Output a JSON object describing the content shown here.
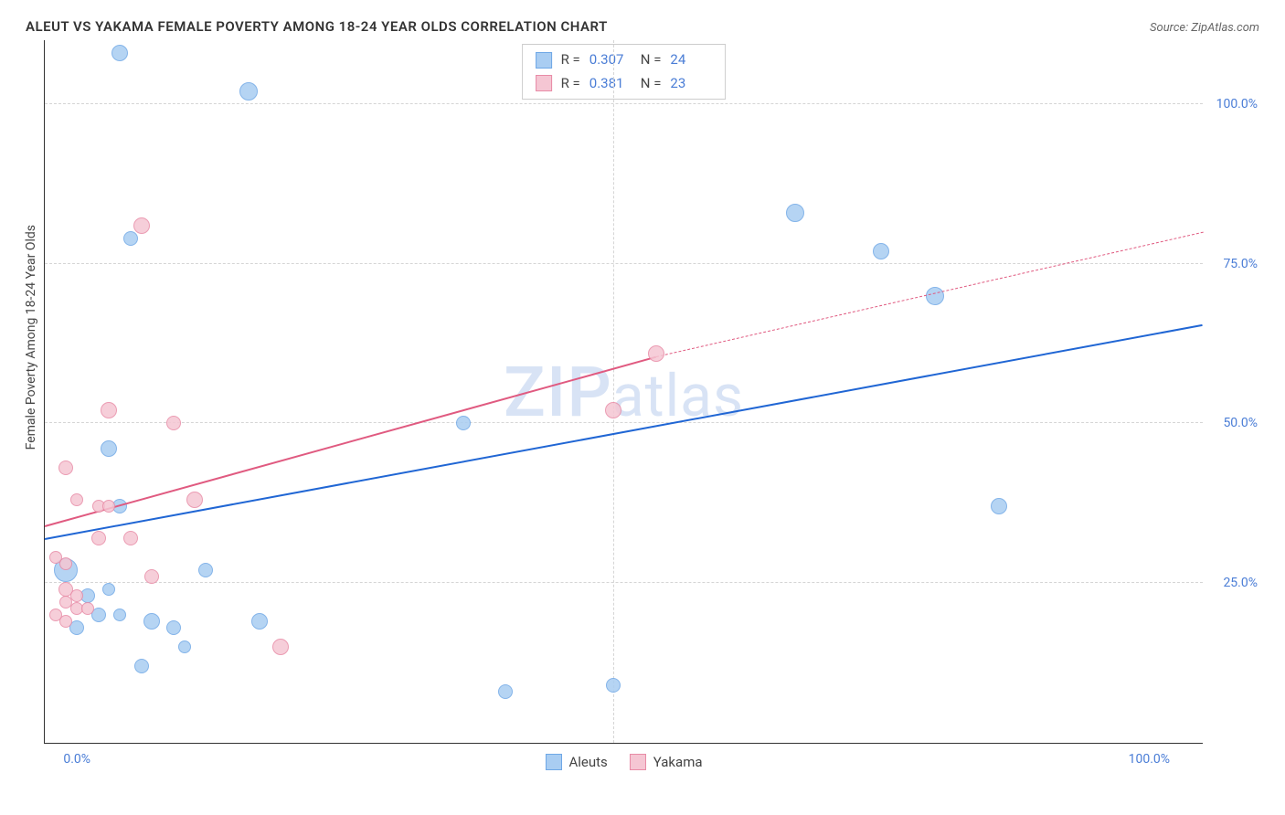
{
  "title": "ALEUT VS YAKAMA FEMALE POVERTY AMONG 18-24 YEAR OLDS CORRELATION CHART",
  "source": "Source: ZipAtlas.com",
  "ylabel": "Female Poverty Among 18-24 Year Olds",
  "watermark_a": "ZIP",
  "watermark_b": "atlas",
  "chart": {
    "type": "scatter",
    "background_color": "#ffffff",
    "grid_color": "#d5d5d5",
    "axis_color": "#333333",
    "tick_color": "#4a7dd6",
    "tick_fontsize": 14,
    "xlim": [
      -3,
      105
    ],
    "ylim": [
      0,
      110
    ],
    "xticks": [
      {
        "v": 0,
        "label": "0.0%"
      },
      {
        "v": 100,
        "label": "100.0%"
      }
    ],
    "yticks": [
      {
        "v": 25,
        "label": "25.0%"
      },
      {
        "v": 50,
        "label": "50.0%"
      },
      {
        "v": 75,
        "label": "75.0%"
      },
      {
        "v": 100,
        "label": "100.0%"
      }
    ],
    "x_gridlines": [
      50
    ],
    "series": [
      {
        "name": "Aleuts",
        "fill": "#a9cdf2",
        "stroke": "#6fa8e6",
        "trend_color": "#2066d4",
        "marker_r_default": 9,
        "r_value": "0.307",
        "n_value": "24",
        "trend": {
          "x1": -3,
          "y1": 32,
          "x2": 105,
          "y2": 65.5
        },
        "points": [
          {
            "x": 4,
            "y": 108,
            "r": 9
          },
          {
            "x": 16,
            "y": 102,
            "r": 10
          },
          {
            "x": 67,
            "y": 83,
            "r": 10
          },
          {
            "x": 5,
            "y": 79,
            "r": 8
          },
          {
            "x": 75,
            "y": 77,
            "r": 9
          },
          {
            "x": 80,
            "y": 70,
            "r": 10
          },
          {
            "x": 36,
            "y": 50,
            "r": 8
          },
          {
            "x": 3,
            "y": 46,
            "r": 9
          },
          {
            "x": 86,
            "y": 37,
            "r": 9
          },
          {
            "x": 4,
            "y": 37,
            "r": 8
          },
          {
            "x": -1,
            "y": 27,
            "r": 13
          },
          {
            "x": 12,
            "y": 27,
            "r": 8
          },
          {
            "x": 1,
            "y": 23,
            "r": 8
          },
          {
            "x": 3,
            "y": 24,
            "r": 7
          },
          {
            "x": 2,
            "y": 20,
            "r": 8
          },
          {
            "x": 4,
            "y": 20,
            "r": 7
          },
          {
            "x": 7,
            "y": 19,
            "r": 9
          },
          {
            "x": 0,
            "y": 18,
            "r": 8
          },
          {
            "x": 9,
            "y": 18,
            "r": 8
          },
          {
            "x": 17,
            "y": 19,
            "r": 9
          },
          {
            "x": 6,
            "y": 12,
            "r": 8
          },
          {
            "x": 40,
            "y": 8,
            "r": 8
          },
          {
            "x": 50,
            "y": 9,
            "r": 8
          },
          {
            "x": 10,
            "y": 15,
            "r": 7
          }
        ]
      },
      {
        "name": "Yakama",
        "fill": "#f5c6d3",
        "stroke": "#e88ba6",
        "trend_color": "#e05a80",
        "marker_r_default": 9,
        "r_value": "0.381",
        "n_value": "23",
        "trend": {
          "x1": -3,
          "y1": 34,
          "x2": 54,
          "y2": 60.5
        },
        "trend_dash": {
          "x1": 54,
          "y1": 60.5,
          "x2": 105,
          "y2": 80
        },
        "points": [
          {
            "x": 6,
            "y": 81,
            "r": 9
          },
          {
            "x": 54,
            "y": 61,
            "r": 9
          },
          {
            "x": 3,
            "y": 52,
            "r": 9
          },
          {
            "x": 50,
            "y": 52,
            "r": 9
          },
          {
            "x": 9,
            "y": 50,
            "r": 8
          },
          {
            "x": -1,
            "y": 43,
            "r": 8
          },
          {
            "x": 11,
            "y": 38,
            "r": 9
          },
          {
            "x": 0,
            "y": 38,
            "r": 7
          },
          {
            "x": 2,
            "y": 37,
            "r": 7
          },
          {
            "x": 3,
            "y": 37,
            "r": 7
          },
          {
            "x": 2,
            "y": 32,
            "r": 8
          },
          {
            "x": 5,
            "y": 32,
            "r": 8
          },
          {
            "x": -2,
            "y": 29,
            "r": 7
          },
          {
            "x": 7,
            "y": 26,
            "r": 8
          },
          {
            "x": -1,
            "y": 24,
            "r": 8
          },
          {
            "x": 0,
            "y": 23,
            "r": 7
          },
          {
            "x": 0,
            "y": 21,
            "r": 7
          },
          {
            "x": -1,
            "y": 22,
            "r": 7
          },
          {
            "x": -2,
            "y": 20,
            "r": 7
          },
          {
            "x": 1,
            "y": 21,
            "r": 7
          },
          {
            "x": -1,
            "y": 19,
            "r": 7
          },
          {
            "x": 19,
            "y": 15,
            "r": 9
          },
          {
            "x": -1,
            "y": 28,
            "r": 7
          }
        ]
      }
    ]
  },
  "legend": {
    "items": [
      {
        "label": "Aleuts",
        "fill": "#a9cdf2",
        "stroke": "#6fa8e6"
      },
      {
        "label": "Yakama",
        "fill": "#f5c6d3",
        "stroke": "#e88ba6"
      }
    ]
  }
}
